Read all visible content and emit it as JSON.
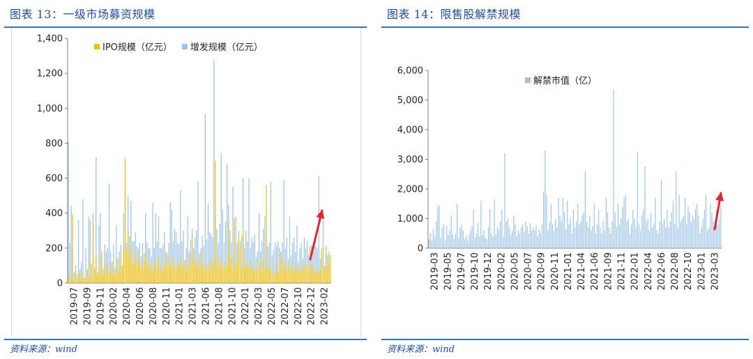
{
  "left": {
    "title": "图表 13：一级市场募资规模",
    "source": "资料来源：wind"
  },
  "right": {
    "title": "图表 14：限售股解禁规模",
    "source": "资料来源：wind"
  },
  "colors": {
    "ipo": "#f5c000",
    "addon": "#9dc3e6",
    "unlock": "#9dc3e6",
    "arrow": "#e3262e",
    "rule": "#2e75b6",
    "title": "#1f4e96"
  },
  "chart_data": [
    {
      "type": "bar",
      "stacked": false,
      "title": "一级市场募资规模",
      "xlabel": "",
      "ylabel": "",
      "ylim": [
        0,
        1400
      ],
      "yticks": [
        0,
        200,
        400,
        600,
        800,
        1000,
        1200,
        1400
      ],
      "ytick_labels": [
        "0",
        "200",
        "400",
        "600",
        "800",
        "1,000",
        "1,200",
        "1,400"
      ],
      "xtick_labels": [
        "2019-07",
        "2019-09",
        "2019-11",
        "2020-02",
        "2020-04",
        "2020-06",
        "2020-08",
        "2020-11",
        "2021-01",
        "2021-03",
        "2021-06",
        "2021-08",
        "2021-10",
        "2022-01",
        "2022-03",
        "2022-05",
        "2022-07",
        "2022-10",
        "2022-12",
        "2023-02"
      ],
      "legend": [
        "IPO规模（亿元）",
        "增发规模（亿元）"
      ],
      "legend_position": "top",
      "grid": false,
      "annotation": "red upward arrow near 2022-12 to 2023-01",
      "series": [
        {
          "name": "IPO规模（亿元）",
          "values": [
            40,
            20,
            30,
            390,
            15,
            60,
            25,
            70,
            30,
            20,
            60,
            25,
            30,
            80,
            25,
            120,
            40,
            350,
            80,
            150,
            40,
            90,
            60,
            180,
            40,
            100,
            60,
            110,
            50,
            70,
            120,
            60,
            40,
            150,
            80,
            60,
            130,
            100,
            200,
            700,
            180,
            300,
            150,
            220,
            110,
            120,
            180,
            90,
            160,
            120,
            100,
            90,
            130,
            180,
            100,
            140,
            80,
            100,
            70,
            110,
            130,
            90,
            150,
            100,
            60,
            80,
            110,
            180,
            90,
            130,
            110,
            90,
            150,
            90,
            80,
            120,
            100,
            140,
            80,
            100,
            130,
            70,
            110,
            90,
            160,
            280,
            140,
            90,
            110,
            130,
            90,
            180,
            120,
            60,
            90,
            100,
            80,
            110,
            130,
            60,
            120,
            700,
            150,
            90,
            110,
            130,
            80,
            120,
            90,
            100,
            340,
            160,
            140,
            80,
            370,
            100,
            120,
            270,
            200,
            80,
            300,
            90,
            100,
            110,
            80,
            130,
            90,
            80,
            60,
            90,
            80,
            130,
            100,
            60,
            140,
            70,
            560,
            90,
            100,
            70,
            40,
            60,
            80,
            120,
            50,
            60,
            180,
            140,
            90,
            110,
            70,
            100,
            80,
            130,
            70,
            60,
            90,
            100,
            70,
            80,
            60,
            100,
            110,
            80,
            90,
            60,
            210,
            100,
            90,
            60,
            50,
            70,
            80,
            60,
            200,
            90,
            100,
            210,
            80,
            120,
            160
          ]
        },
        {
          "name": "增发规模（亿元）",
          "values": [
            810,
            230,
            440,
            180,
            60,
            100,
            50,
            360,
            80,
            120,
            480,
            30,
            200,
            70,
            380,
            360,
            110,
            400,
            90,
            720,
            60,
            330,
            400,
            140,
            80,
            220,
            180,
            200,
            570,
            180,
            100,
            220,
            90,
            330,
            140,
            180,
            220,
            80,
            400,
            720,
            230,
            500,
            270,
            470,
            240,
            240,
            290,
            210,
            200,
            230,
            150,
            230,
            170,
            400,
            230,
            200,
            200,
            150,
            460,
            200,
            400,
            240,
            380,
            200,
            200,
            220,
            290,
            160,
            170,
            230,
            460,
            420,
            240,
            310,
            290,
            230,
            220,
            530,
            240,
            300,
            120,
            200,
            380,
            180,
            250,
            310,
            200,
            260,
            300,
            580,
            170,
            200,
            270,
            210,
            970,
            250,
            450,
            290,
            280,
            260,
            1280,
            380,
            310,
            230,
            340,
            740,
            420,
            230,
            350,
            680,
            450,
            300,
            230,
            550,
            180,
            380,
            230,
            300,
            240,
            270,
            600,
            200,
            300,
            240,
            600,
            200,
            260,
            230,
            280,
            150,
            180,
            400,
            180,
            240,
            310,
            380,
            220,
            210,
            230,
            580,
            160,
            190,
            230,
            210,
            240,
            200,
            180,
            230,
            590,
            200,
            260,
            140,
            380,
            160,
            230,
            260,
            180,
            330,
            120,
            200,
            230,
            140,
            260,
            200,
            240,
            160,
            200,
            220,
            180,
            260,
            210,
            200,
            610,
            140,
            170,
            380,
            100,
            200,
            160,
            180
          ]
        }
      ]
    },
    {
      "type": "bar",
      "title": "限售股解禁规模",
      "xlabel": "",
      "ylabel": "",
      "ylim": [
        0,
        6000
      ],
      "yticks": [
        0,
        1000,
        2000,
        3000,
        4000,
        5000,
        6000
      ],
      "ytick_labels": [
        "0",
        "1,000",
        "2,000",
        "3,000",
        "4,000",
        "5,000",
        "6,000"
      ],
      "xtick_labels": [
        "2019-03",
        "2019-05",
        "2019-07",
        "2019-10",
        "2019-12",
        "2020-02",
        "2020-05",
        "2020-07",
        "2020-09",
        "2020-11",
        "2021-01",
        "2021-04",
        "2021-06",
        "2021-09",
        "2021-11",
        "2022-01",
        "2022-04",
        "2022-06",
        "2022-08",
        "2022-10",
        "2023-01",
        "2023-03"
      ],
      "legend": [
        "解禁市值（亿）"
      ],
      "legend_position": "top",
      "grid": false,
      "annotation": "red upward arrow near 2023-01",
      "series": [
        {
          "name": "解禁市值（亿）",
          "values": [
            300,
            500,
            250,
            650,
            400,
            900,
            1400,
            1450,
            350,
            700,
            800,
            250,
            750,
            450,
            600,
            1100,
            450,
            300,
            500,
            1500,
            350,
            700,
            800,
            600,
            300,
            400,
            250,
            450,
            600,
            750,
            1300,
            350,
            500,
            850,
            400,
            1600,
            450,
            600,
            350,
            300,
            700,
            1300,
            500,
            400,
            1650,
            450,
            700,
            600,
            900,
            1300,
            400,
            3200,
            900,
            1000,
            700,
            450,
            600,
            1100,
            800,
            400,
            600,
            500,
            700,
            800,
            550,
            900,
            750,
            500,
            850,
            600,
            700,
            600,
            750,
            400,
            650,
            500,
            800,
            1900,
            3300,
            1800,
            600,
            900,
            1500,
            800,
            600,
            1000,
            700,
            1700,
            1100,
            900,
            1700,
            1200,
            650,
            1600,
            800,
            1000,
            500,
            1300,
            700,
            900,
            1500,
            800,
            900,
            1100,
            1200,
            2600,
            900,
            700,
            1100,
            600,
            750,
            1500,
            500,
            800,
            1300,
            700,
            500,
            900,
            600,
            1700,
            1200,
            700,
            500,
            900,
            5350,
            1200,
            700,
            1500,
            800,
            1000,
            1400,
            1700,
            1800,
            900,
            1000,
            500,
            800,
            1300,
            1000,
            700,
            3250,
            800,
            600,
            1100,
            1300,
            2750,
            900,
            1000,
            600,
            1200,
            700,
            800,
            1700,
            600,
            500,
            900,
            2300,
            800,
            1000,
            700,
            1300,
            700,
            900,
            1200,
            1600,
            800,
            2600,
            700,
            1800,
            900,
            1000,
            1100,
            1700,
            800,
            1400,
            1200,
            900,
            1100,
            1000,
            1300,
            1500,
            1100,
            500,
            700,
            1000,
            1300,
            1800,
            600,
            700,
            1500,
            1200,
            900,
            600,
            1300,
            800,
            1000,
            1450
          ]
        }
      ]
    }
  ]
}
